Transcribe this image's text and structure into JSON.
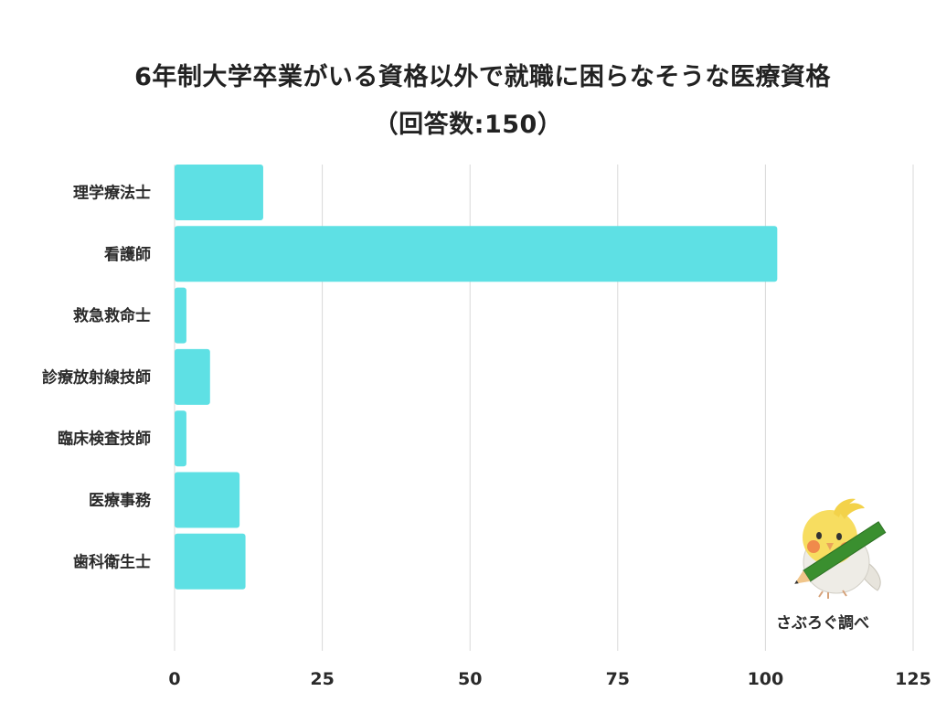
{
  "chart_data": {
    "type": "bar",
    "orientation": "horizontal",
    "title_line1": "6年制大学卒業がいる資格以外で就職に困らなそうな医療資格",
    "title_line2": "（回答数:150）",
    "categories": [
      "理学療法士",
      "看護師",
      "救急救命士",
      "診療放射線技師",
      "臨床検査技師",
      "医療事務",
      "歯科衛生士"
    ],
    "values": [
      15,
      102,
      2,
      6,
      2,
      11,
      12
    ],
    "xlim": [
      0,
      125
    ],
    "ticks": [
      0,
      25,
      50,
      75,
      100,
      125
    ],
    "grid": true,
    "bar_color": "#5ee0e4"
  },
  "credit": {
    "text": "さぶろぐ調べ",
    "icon": "bird-mascot-icon"
  }
}
